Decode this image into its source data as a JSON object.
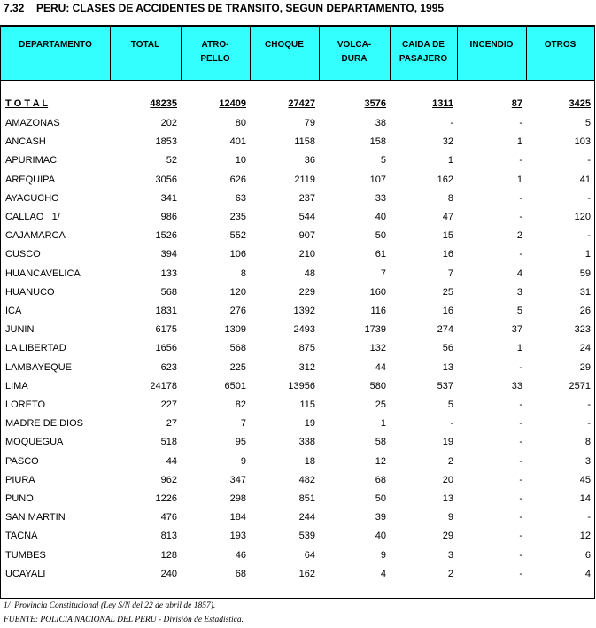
{
  "title_number": "7.32",
  "title": "PERU: CLASES DE ACCIDENTES DE TRANSITO, SEGUN DEPARTAMENTO, 1995",
  "table": {
    "header": [
      [
        "DEPARTAMENTO"
      ],
      [
        "TOTAL"
      ],
      [
        "ATRO-",
        "PELLO"
      ],
      [
        "CHOQUE"
      ],
      [
        "VOLCA-",
        "DURA"
      ],
      [
        "CAIDA DE",
        "PASAJERO"
      ],
      [
        "INCENDIO"
      ],
      [
        "OTROS"
      ]
    ],
    "total": [
      "T O T A L",
      48235,
      12409,
      27427,
      3576,
      1311,
      87,
      3425
    ],
    "rows": [
      [
        "AMAZONAS",
        202,
        80,
        79,
        38,
        "-",
        "-",
        5
      ],
      [
        "ANCASH",
        1853,
        401,
        1158,
        158,
        32,
        1,
        103
      ],
      [
        "APURIMAC",
        52,
        10,
        36,
        5,
        1,
        "-",
        "-"
      ],
      [
        "AREQUIPA",
        3056,
        626,
        2119,
        107,
        162,
        1,
        41
      ],
      [
        "AYACUCHO",
        341,
        63,
        237,
        33,
        8,
        "-",
        "-"
      ],
      [
        "CALLAO   1/",
        986,
        235,
        544,
        40,
        47,
        "-",
        120
      ],
      [
        "CAJAMARCA",
        1526,
        552,
        907,
        50,
        15,
        2,
        "-"
      ],
      [
        "CUSCO",
        394,
        106,
        210,
        61,
        16,
        "-",
        1
      ],
      [
        "HUANCAVELICA",
        133,
        8,
        48,
        7,
        7,
        4,
        59
      ],
      [
        "HUANUCO",
        568,
        120,
        229,
        160,
        25,
        3,
        31
      ],
      [
        "ICA",
        1831,
        276,
        1392,
        116,
        16,
        5,
        26
      ],
      [
        "JUNIN",
        6175,
        1309,
        2493,
        1739,
        274,
        37,
        323
      ],
      [
        "LA LIBERTAD",
        1656,
        568,
        875,
        132,
        56,
        1,
        24
      ],
      [
        "LAMBAYEQUE",
        623,
        225,
        312,
        44,
        13,
        "-",
        29
      ],
      [
        "LIMA",
        24178,
        6501,
        13956,
        580,
        537,
        33,
        2571
      ],
      [
        "LORETO",
        227,
        82,
        115,
        25,
        5,
        "-",
        "-"
      ],
      [
        "MADRE DE DIOS",
        27,
        7,
        19,
        1,
        "-",
        "-",
        "-"
      ],
      [
        "MOQUEGUA",
        518,
        95,
        338,
        58,
        19,
        "-",
        8
      ],
      [
        "PASCO",
        44,
        9,
        18,
        12,
        2,
        "-",
        3
      ],
      [
        "PIURA",
        962,
        347,
        482,
        68,
        20,
        "-",
        45
      ],
      [
        "PUNO",
        1226,
        298,
        851,
        50,
        13,
        "-",
        14
      ],
      [
        "SAN MARTIN",
        476,
        184,
        244,
        39,
        9,
        "-",
        "-"
      ],
      [
        "TACNA",
        813,
        193,
        539,
        40,
        29,
        "-",
        12
      ],
      [
        "TUMBES",
        128,
        46,
        64,
        9,
        3,
        "-",
        6
      ],
      [
        "UCAYALI",
        240,
        68,
        162,
        4,
        2,
        "-",
        4
      ]
    ]
  },
  "footnotes": [
    "1/  Provincia Constitucional (Ley S/N del 22 de abril de 1857).",
    "FUENTE: POLICIA NACIONAL DEL PERU - División de Estadística."
  ]
}
